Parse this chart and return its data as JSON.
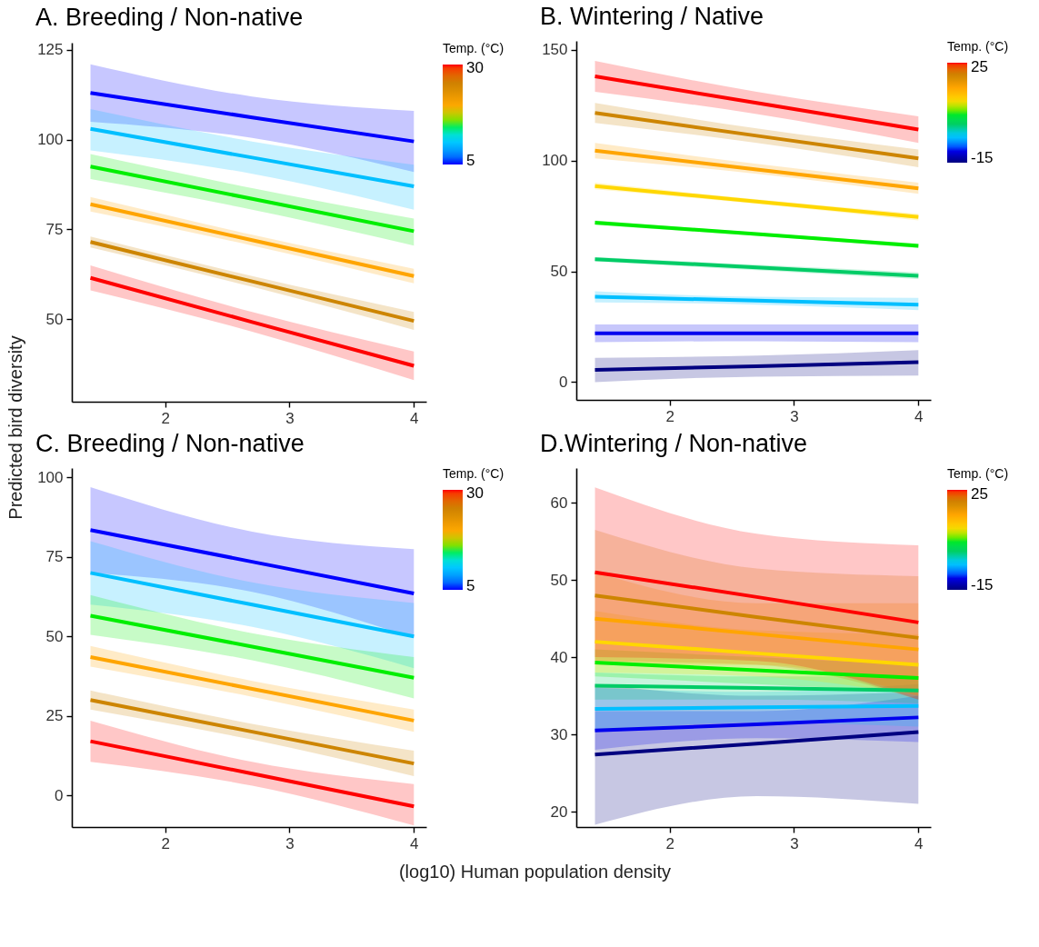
{
  "chart_data": [
    {
      "type": "line",
      "title": "A. Breeding / Non-native",
      "ylabel": "Predicted bird diversity",
      "xlim": [
        1.25,
        4.1
      ],
      "xticks": [
        2,
        3,
        4
      ],
      "ylim": [
        27,
        127
      ],
      "yticks": [
        50,
        75,
        100,
        125
      ],
      "clabel": "Temp. (°C)",
      "clim": [
        4,
        31
      ],
      "cticks": [
        5,
        30
      ],
      "grid": false,
      "series": [
        {
          "color": "#0000ff",
          "x": [
            1.4,
            2.7,
            4
          ],
          "values": [
            113,
            106.2,
            99.5
          ],
          "upper": [
            121,
            112,
            108
          ],
          "lower": [
            105,
            100.5,
            91
          ]
        },
        {
          "color": "#00bfff",
          "x": [
            1.4,
            2.7,
            4
          ],
          "values": [
            103,
            95,
            87
          ],
          "upper": [
            108.5,
            99.5,
            93
          ],
          "lower": [
            97,
            90.5,
            80.5
          ]
        },
        {
          "color": "#00ee00",
          "x": [
            1.4,
            2.7,
            4
          ],
          "values": [
            92.5,
            83.5,
            74.5
          ],
          "upper": [
            96,
            86.5,
            78
          ],
          "lower": [
            89,
            80.5,
            70.5
          ]
        },
        {
          "color": "#ffa500",
          "x": [
            1.4,
            2.7,
            4
          ],
          "values": [
            82,
            72,
            62
          ],
          "upper": [
            84,
            73.5,
            64
          ],
          "lower": [
            80,
            70.5,
            60
          ]
        },
        {
          "color": "#cd8500",
          "x": [
            1.4,
            2.7,
            4
          ],
          "values": [
            71.5,
            60.5,
            49.5
          ],
          "upper": [
            73,
            62,
            52
          ],
          "lower": [
            70,
            59,
            47
          ]
        },
        {
          "color": "#ff0000",
          "x": [
            1.4,
            2.7,
            4
          ],
          "values": [
            61.5,
            49.2,
            37
          ],
          "upper": [
            65,
            52,
            41
          ],
          "lower": [
            58,
            46.5,
            33
          ]
        }
      ]
    },
    {
      "type": "line",
      "title": "B. Wintering / Native",
      "xlim": [
        1.25,
        4.1
      ],
      "xticks": [
        2,
        3,
        4
      ],
      "ylim": [
        -8,
        154
      ],
      "yticks": [
        0,
        50,
        100,
        150
      ],
      "clabel": "Temp. (°C)",
      "clim": [
        -17,
        27
      ],
      "cticks": [
        -15,
        25
      ],
      "grid": false,
      "series": [
        {
          "color": "#000080",
          "x": [
            1.4,
            2.7,
            4
          ],
          "values": [
            5.5,
            7.2,
            9
          ],
          "upper": [
            11,
            12,
            14.5
          ],
          "lower": [
            0,
            2.5,
            3
          ]
        },
        {
          "color": "#0000ee",
          "x": [
            1.4,
            2.7,
            4
          ],
          "values": [
            22,
            22,
            22
          ],
          "upper": [
            26,
            26,
            26
          ],
          "lower": [
            18,
            18.5,
            18
          ]
        },
        {
          "color": "#00bfff",
          "x": [
            1.4,
            2.7,
            4
          ],
          "values": [
            38.5,
            36.8,
            35
          ],
          "upper": [
            41,
            38.5,
            38
          ],
          "lower": [
            36,
            35,
            32.5
          ]
        },
        {
          "color": "#00cc66",
          "x": [
            1.4,
            2.7,
            4
          ],
          "values": [
            55.5,
            51.8,
            48
          ],
          "upper": [
            56.5,
            53,
            49.5
          ],
          "lower": [
            54.5,
            50.5,
            46.5
          ]
        },
        {
          "color": "#00ee00",
          "x": [
            1.4,
            2.7,
            4
          ],
          "values": [
            72,
            66.8,
            61.5
          ],
          "upper": [
            73,
            67.5,
            62.5
          ],
          "lower": [
            71,
            66,
            60.5
          ]
        },
        {
          "color": "#ffd700",
          "x": [
            1.4,
            2.7,
            4
          ],
          "values": [
            88.5,
            81.5,
            74.5
          ],
          "upper": [
            90,
            82.5,
            76
          ],
          "lower": [
            87,
            80.5,
            73
          ]
        },
        {
          "color": "#ffa500",
          "x": [
            1.4,
            2.7,
            4
          ],
          "values": [
            104.5,
            96,
            87.5
          ],
          "upper": [
            108,
            98.5,
            90
          ],
          "lower": [
            101,
            94,
            85
          ]
        },
        {
          "color": "#cd8500",
          "x": [
            1.4,
            2.7,
            4
          ],
          "values": [
            121.5,
            111.2,
            101
          ],
          "upper": [
            126,
            114.5,
            105
          ],
          "lower": [
            117,
            108,
            97
          ]
        },
        {
          "color": "#ff0000",
          "x": [
            1.4,
            2.7,
            4
          ],
          "values": [
            138,
            126,
            114
          ],
          "upper": [
            145,
            131,
            120
          ],
          "lower": [
            131,
            121,
            108
          ]
        }
      ]
    },
    {
      "type": "line",
      "title": "C. Breeding / Non-native",
      "xlabel": "(log10) Human population density",
      "xlim": [
        1.25,
        4.1
      ],
      "xticks": [
        2,
        3,
        4
      ],
      "ylim": [
        -10,
        103
      ],
      "yticks": [
        0,
        25,
        50,
        75,
        100
      ],
      "clabel": "Temp. (°C)",
      "clim": [
        4,
        31
      ],
      "cticks": [
        5,
        30
      ],
      "grid": false,
      "series": [
        {
          "color": "#0000ff",
          "x": [
            1.4,
            2.7,
            4
          ],
          "values": [
            83.5,
            73.5,
            63.5
          ],
          "upper": [
            97,
            83,
            77.5
          ],
          "lower": [
            70,
            64,
            49.5
          ]
        },
        {
          "color": "#00bfff",
          "x": [
            1.4,
            2.7,
            4
          ],
          "values": [
            70,
            60,
            50
          ],
          "upper": [
            80,
            67,
            60.5
          ],
          "lower": [
            60,
            53,
            40
          ]
        },
        {
          "color": "#00ee00",
          "x": [
            1.4,
            2.7,
            4
          ],
          "values": [
            56.5,
            46.8,
            37
          ],
          "upper": [
            63,
            51,
            43.5
          ],
          "lower": [
            50.5,
            42.5,
            30.5
          ]
        },
        {
          "color": "#ffa500",
          "x": [
            1.4,
            2.7,
            4
          ],
          "values": [
            43.5,
            33.5,
            23.5
          ],
          "upper": [
            47,
            36,
            27
          ],
          "lower": [
            40.5,
            31,
            20
          ]
        },
        {
          "color": "#cd8500",
          "x": [
            1.4,
            2.7,
            4
          ],
          "values": [
            30,
            20,
            10
          ],
          "upper": [
            33,
            22.5,
            14
          ],
          "lower": [
            27,
            17.5,
            6
          ]
        },
        {
          "color": "#ff0000",
          "x": [
            1.4,
            2.7,
            4
          ],
          "values": [
            17,
            6.8,
            -3.5
          ],
          "upper": [
            23.5,
            10.5,
            3.5
          ],
          "lower": [
            10.5,
            3,
            -9.5
          ]
        }
      ]
    },
    {
      "type": "line",
      "title": "D.Wintering / Non-native",
      "xlim": [
        1.25,
        4.1
      ],
      "xticks": [
        2,
        3,
        4
      ],
      "ylim": [
        18,
        64.5
      ],
      "yticks": [
        20,
        30,
        40,
        50,
        60
      ],
      "clabel": "Temp. (°C)",
      "clim": [
        -17,
        27
      ],
      "cticks": [
        -15,
        25
      ],
      "grid": false,
      "series": [
        {
          "color": "#000080",
          "x": [
            1.4,
            2.7,
            4
          ],
          "values": [
            27.4,
            28.8,
            30.3
          ],
          "upper": [
            36.5,
            35,
            35.5
          ],
          "lower": [
            18.3,
            22,
            21
          ]
        },
        {
          "color": "#0000ee",
          "x": [
            1.4,
            2.7,
            4
          ],
          "values": [
            30.5,
            31.3,
            32.2
          ],
          "upper": [
            33,
            33,
            35
          ],
          "lower": [
            28,
            29.5,
            29
          ]
        },
        {
          "color": "#00bfff",
          "x": [
            1.4,
            2.7,
            4
          ],
          "values": [
            33.3,
            33.5,
            33.7
          ],
          "upper": [
            36,
            35.5,
            36.5
          ],
          "lower": [
            30.5,
            31.5,
            31
          ]
        },
        {
          "color": "#00cc66",
          "x": [
            1.4,
            2.7,
            4
          ],
          "values": [
            36.3,
            36,
            35.7
          ],
          "upper": [
            38,
            37.5,
            37.5
          ],
          "lower": [
            34.5,
            34.5,
            34
          ]
        },
        {
          "color": "#00ee00",
          "x": [
            1.4,
            2.7,
            4
          ],
          "values": [
            39.3,
            38.3,
            37.3
          ],
          "upper": [
            41,
            40,
            39
          ],
          "lower": [
            37.5,
            36.5,
            35.5
          ]
        },
        {
          "color": "#ffd700",
          "x": [
            1.4,
            2.7,
            4
          ],
          "values": [
            42,
            40.5,
            39
          ],
          "upper": [
            46,
            43.5,
            43
          ],
          "lower": [
            38,
            37.5,
            35
          ]
        },
        {
          "color": "#ffa500",
          "x": [
            1.4,
            2.7,
            4
          ],
          "values": [
            45,
            43,
            41
          ],
          "upper": [
            51,
            47,
            47
          ],
          "lower": [
            39,
            39,
            35
          ]
        },
        {
          "color": "#cd8500",
          "x": [
            1.4,
            2.7,
            4
          ],
          "values": [
            48,
            45.2,
            42.5
          ],
          "upper": [
            56.5,
            51.5,
            50.5
          ],
          "lower": [
            39.5,
            39,
            34.5
          ]
        },
        {
          "color": "#ff0000",
          "x": [
            1.4,
            2.7,
            4
          ],
          "values": [
            51,
            47.8,
            44.5
          ],
          "upper": [
            62,
            56,
            54.5
          ],
          "lower": [
            40,
            39.5,
            34.5
          ]
        }
      ]
    }
  ]
}
